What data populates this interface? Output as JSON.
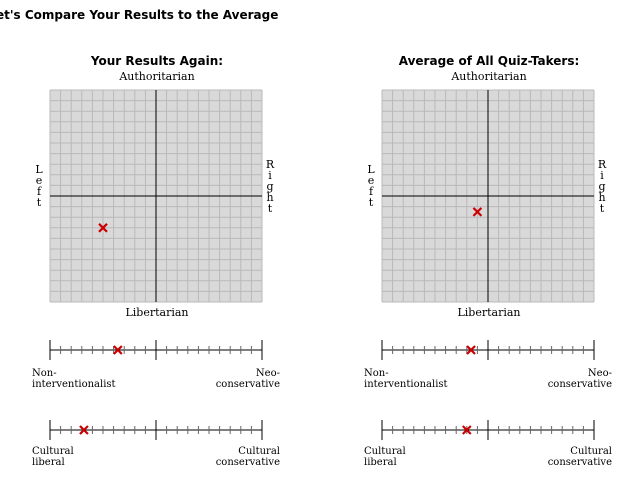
{
  "page": {
    "heading": "et's Compare Your Results to the Average"
  },
  "panels": [
    {
      "title": "Your Results Again:",
      "axes": {
        "top": "Authoritarian",
        "bottom": "Libertarian",
        "left": [
          "L",
          "e",
          "f",
          "t"
        ],
        "right": [
          "R",
          "i",
          "g",
          "h",
          "t"
        ]
      },
      "compass_marker": {
        "economic": -5,
        "social": -3
      },
      "scale1": {
        "left": [
          "Non-",
          "interventionalist"
        ],
        "right": [
          "Neo-",
          "conservative"
        ],
        "marker": 0.32
      },
      "scale2": {
        "left": [
          "Cultural",
          "liberal"
        ],
        "right": [
          "Cultural",
          "conservative"
        ],
        "marker": 0.16
      }
    },
    {
      "title": "Average of All Quiz-Takers:",
      "axes": {
        "top": "Authoritarian",
        "bottom": "Libertarian",
        "left": [
          "L",
          "e",
          "f",
          "t"
        ],
        "right": [
          "R",
          "i",
          "g",
          "h",
          "t"
        ]
      },
      "compass_marker": {
        "economic": -1,
        "social": -1.5
      },
      "scale1": {
        "left": [
          "Non-",
          "interventionalist"
        ],
        "right": [
          "Neo-",
          "conservative"
        ],
        "marker": 0.42
      },
      "scale2": {
        "left": [
          "Cultural",
          "liberal"
        ],
        "right": [
          "Cultural",
          "conservative"
        ],
        "marker": 0.4
      }
    }
  ],
  "colors": {
    "grid_bg": "#d9d9d9",
    "grid_line": "#b9b9b9",
    "marker": "#cc0000"
  }
}
